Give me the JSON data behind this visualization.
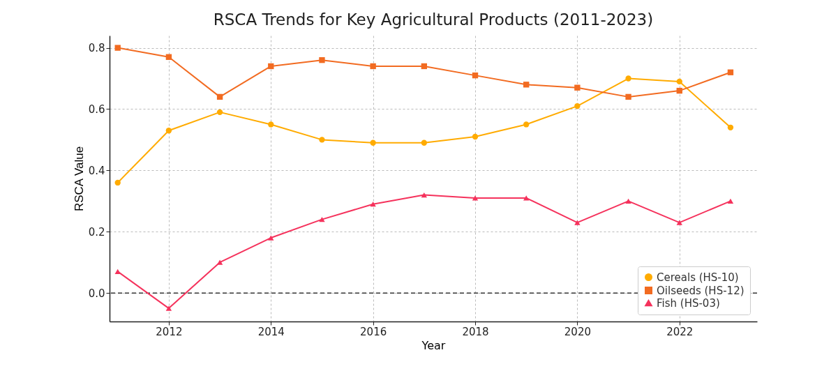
{
  "chart_data": {
    "type": "line",
    "title": "RSCA Trends for Key Agricultural Products (2011-2023)",
    "xlabel": "Year",
    "ylabel": "RSCA Value",
    "x": [
      2011,
      2012,
      2013,
      2014,
      2015,
      2016,
      2017,
      2018,
      2019,
      2020,
      2021,
      2022,
      2023
    ],
    "series": [
      {
        "name": "Cereals (HS-10)",
        "color": "#ffab00",
        "marker": "circle",
        "values": [
          0.36,
          0.53,
          0.59,
          0.55,
          0.5,
          0.49,
          0.49,
          0.51,
          0.55,
          0.61,
          0.7,
          0.69,
          0.54
        ]
      },
      {
        "name": "Oilseeds (HS-12)",
        "color": "#f26b21",
        "marker": "square",
        "values": [
          0.8,
          0.77,
          0.64,
          0.74,
          0.76,
          0.74,
          0.74,
          0.71,
          0.68,
          0.67,
          0.64,
          0.66,
          0.72
        ]
      },
      {
        "name": "Fish (HS-03)",
        "color": "#f5325c",
        "marker": "triangle",
        "values": [
          0.07,
          -0.05,
          0.1,
          0.18,
          0.24,
          0.29,
          0.32,
          0.31,
          0.31,
          0.23,
          0.3,
          0.23,
          0.3
        ]
      }
    ],
    "xlim": [
      2010.84,
      2023.52
    ],
    "ylim": [
      -0.093,
      0.84
    ],
    "xticks": [
      2012,
      2014,
      2016,
      2018,
      2020,
      2022
    ],
    "yticks": [
      {
        "value": 0,
        "label": "0.0"
      },
      {
        "value": 0.2,
        "label": "0.2"
      },
      {
        "value": 0.4,
        "label": "0.4"
      },
      {
        "value": 0.6,
        "label": "0.6"
      },
      {
        "value": 0.8,
        "label": "0.8"
      }
    ],
    "ref_lines": [
      {
        "axis": "y",
        "value": 0,
        "color": "#333333",
        "line_style": "dashed"
      }
    ],
    "grid": true,
    "legend": "bottom right"
  }
}
